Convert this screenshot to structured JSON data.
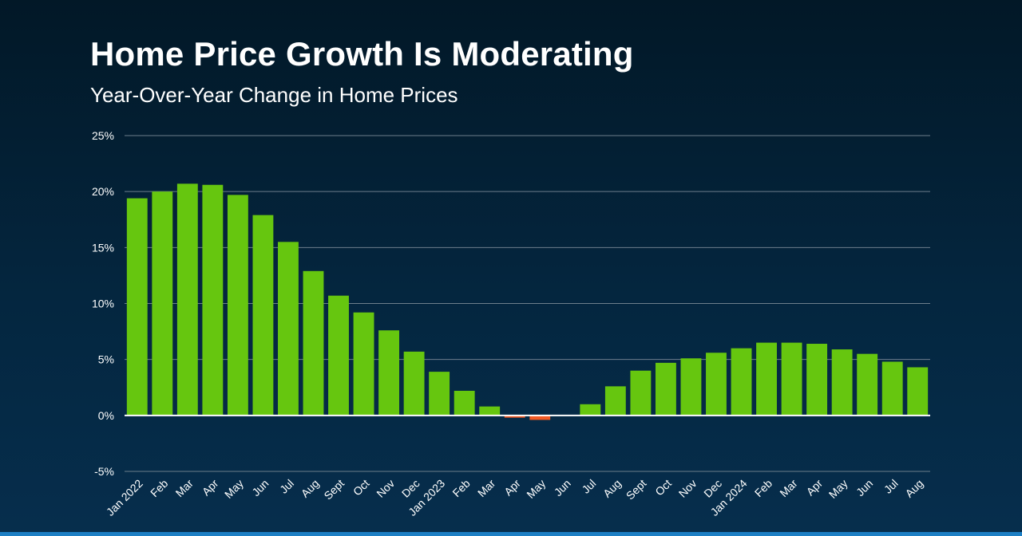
{
  "title": "Home Price Growth Is Moderating",
  "subtitle": "Year-Over-Year Change in Home Prices",
  "colors": {
    "positive_bar": "#66c60f",
    "negative_bar": "#f15a24",
    "gridline": "#6d7e8c",
    "zero_line": "#ffffff",
    "bottom_accent": "#1d7fc4"
  },
  "chart_data": {
    "type": "bar",
    "title": "Home Price Growth Is Moderating",
    "subtitle": "Year-Over-Year Change in Home Prices",
    "xlabel": "",
    "ylabel": "",
    "ylim": [
      -5,
      25
    ],
    "yticks": [
      -5,
      0,
      5,
      10,
      15,
      20,
      25
    ],
    "ytick_labels": [
      "-5%",
      "0%",
      "5%",
      "10%",
      "15%",
      "20%",
      "25%"
    ],
    "grid": true,
    "legend": "none",
    "categories": [
      "Jan 2022",
      "Feb",
      "Mar",
      "Apr",
      "May",
      "Jun",
      "Jul",
      "Aug",
      "Sept",
      "Oct",
      "Nov",
      "Dec",
      "Jan 2023",
      "Feb",
      "Mar",
      "Apr",
      "May",
      "Jun",
      "Jul",
      "Aug",
      "Sept",
      "Oct",
      "Nov",
      "Dec",
      "Jan 2024",
      "Feb",
      "Mar",
      "Apr",
      "May",
      "Jun",
      "Jul",
      "Aug"
    ],
    "values": [
      19.4,
      20.0,
      20.7,
      20.6,
      19.7,
      17.9,
      15.5,
      12.9,
      10.7,
      9.2,
      7.6,
      5.7,
      3.9,
      2.2,
      0.8,
      -0.2,
      -0.4,
      0.0,
      1.0,
      2.6,
      4.0,
      4.7,
      5.1,
      5.6,
      6.0,
      6.5,
      6.5,
      6.4,
      5.9,
      5.5,
      4.8,
      4.3
    ]
  }
}
